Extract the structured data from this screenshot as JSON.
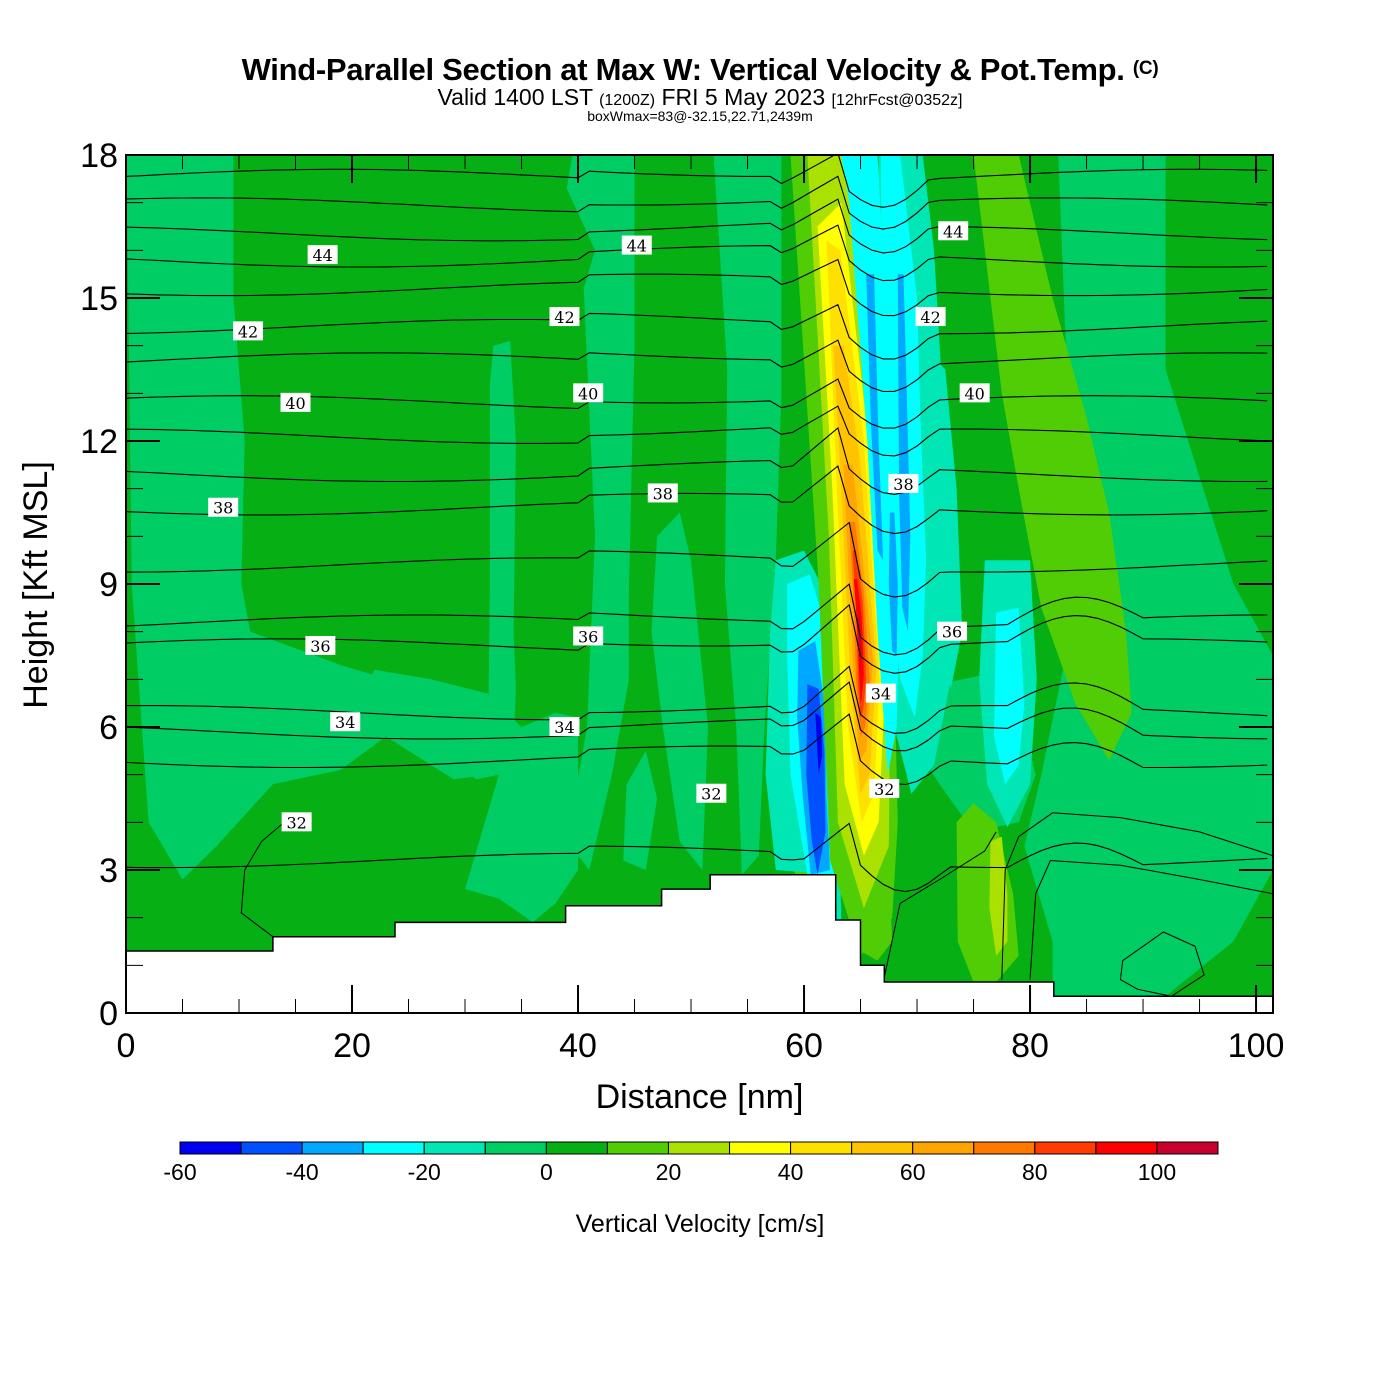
{
  "header": {
    "title": "Wind-Parallel Section at Max W: Vertical Velocity & Pot.Temp.",
    "copyright": "(C)",
    "valid_prefix": "Valid 1400 LST",
    "valid_utc": "(1200Z)",
    "valid_date": "FRI 5 May 2023",
    "forecast_info": "[12hrFcst@0352z]",
    "box_info": "boxWmax=83@-32.15,22.71,2439m"
  },
  "chart_data": {
    "type": "heatmap",
    "title": "Wind-Parallel Section at Max W: Vertical Velocity & Pot.Temp.",
    "xlabel": "Distance [nm]",
    "ylabel": "Height [Kft MSL]",
    "xlim": [
      0,
      101.5
    ],
    "ylim": [
      0,
      18
    ],
    "x_ticks": [
      0,
      20,
      40,
      60,
      80,
      100
    ],
    "y_ticks": [
      0,
      3,
      6,
      9,
      12,
      15,
      18
    ],
    "x_tick_labels": [
      "0",
      "20",
      "40",
      "60",
      "80",
      "100"
    ],
    "y_tick_labels": [
      "0",
      "3",
      "6",
      "9",
      "12",
      "15",
      "18"
    ],
    "colorbar": {
      "title": "Vertical Velocity [cm/s]",
      "levels": [
        -60,
        -50,
        -40,
        -30,
        -20,
        -10,
        0,
        10,
        20,
        30,
        40,
        50,
        60,
        70,
        80,
        90,
        100,
        110
      ],
      "tick_labels": [
        "-60",
        "-40",
        "-20",
        "0",
        "20",
        "40",
        "60",
        "80",
        "100"
      ],
      "colors": [
        "#0000f0",
        "#0050ff",
        "#00a8ff",
        "#00ffff",
        "#00e6b4",
        "#00cd64",
        "#05af14",
        "#50cd05",
        "#aae100",
        "#ffff00",
        "#ffe100",
        "#ffc300",
        "#ffa500",
        "#ff7800",
        "#ff3c00",
        "#ff0000",
        "#c8002d"
      ]
    },
    "terrain": {
      "description": "Terrain profile in kft MSL (step segments, x in nm)",
      "segments": [
        {
          "x0": 0,
          "x1": 13,
          "h": 1.3
        },
        {
          "x0": 13,
          "x1": 23.8,
          "h": 1.6
        },
        {
          "x0": 23.8,
          "x1": 38.9,
          "h": 1.9
        },
        {
          "x0": 38.9,
          "x1": 47.4,
          "h": 2.25
        },
        {
          "x0": 47.4,
          "x1": 51.7,
          "h": 2.6
        },
        {
          "x0": 51.7,
          "x1": 62.8,
          "h": 2.9
        },
        {
          "x0": 62.8,
          "x1": 65.0,
          "h": 1.95
        },
        {
          "x0": 65.0,
          "x1": 67.1,
          "h": 1.0
        },
        {
          "x0": 67.1,
          "x1": 82.1,
          "h": 0.65
        },
        {
          "x0": 82.1,
          "x1": 101.5,
          "h": 0.35
        }
      ]
    },
    "vertical_velocity_features": [
      {
        "name": "main updraft core",
        "x_range": [
          62,
          68
        ],
        "z_range": [
          3,
          18
        ],
        "max_cm_s": 100
      },
      {
        "name": "downdraft core",
        "x_range": [
          59,
          62
        ],
        "z_range": [
          2.5,
          8
        ],
        "min_cm_s": -50
      },
      {
        "name": "downdraft lee band",
        "x_range": [
          66,
          70
        ],
        "z_range": [
          7,
          17
        ],
        "min_cm_s": -30
      },
      {
        "name": "secondary downdraft",
        "x_range": [
          76,
          80
        ],
        "z_range": [
          4,
          9
        ],
        "min_cm_s": -20
      },
      {
        "name": "secondary updraft band",
        "x_range": [
          80,
          89
        ],
        "z_range": [
          6,
          18
        ],
        "max_cm_s": 20
      },
      {
        "name": "low-level updraft",
        "x_range": [
          76,
          79
        ],
        "z_range": [
          1,
          4
        ],
        "max_cm_s": 30
      }
    ],
    "isentropes": {
      "units": "deg C potential temperature",
      "interval": 1,
      "labeled_values": [
        32,
        34,
        36,
        38,
        40,
        42,
        44
      ],
      "labels": [
        {
          "value": "44",
          "x": 17.4,
          "z": 15.9
        },
        {
          "value": "44",
          "x": 45.2,
          "z": 16.1
        },
        {
          "value": "44",
          "x": 73.2,
          "z": 16.4
        },
        {
          "value": "42",
          "x": 10.8,
          "z": 14.3
        },
        {
          "value": "42",
          "x": 38.8,
          "z": 14.6
        },
        {
          "value": "42",
          "x": 71.2,
          "z": 14.6
        },
        {
          "value": "40",
          "x": 15.0,
          "z": 12.8
        },
        {
          "value": "40",
          "x": 40.9,
          "z": 13.0
        },
        {
          "value": "40",
          "x": 75.1,
          "z": 13.0
        },
        {
          "value": "38",
          "x": 8.6,
          "z": 10.6
        },
        {
          "value": "38",
          "x": 47.5,
          "z": 10.9
        },
        {
          "value": "38",
          "x": 68.8,
          "z": 11.1
        },
        {
          "value": "36",
          "x": 17.2,
          "z": 7.7
        },
        {
          "value": "36",
          "x": 40.9,
          "z": 7.9
        },
        {
          "value": "36",
          "x": 73.1,
          "z": 8.0
        },
        {
          "value": "34",
          "x": 19.4,
          "z": 6.1
        },
        {
          "value": "34",
          "x": 38.8,
          "z": 6.0
        },
        {
          "value": "34",
          "x": 66.8,
          "z": 6.7
        },
        {
          "value": "32",
          "x": 15.1,
          "z": 4.0
        },
        {
          "value": "32",
          "x": 51.8,
          "z": 4.6
        },
        {
          "value": "32",
          "x": 67.1,
          "z": 4.7
        }
      ],
      "line_levels_z_at_left": [
        17.55,
        16.95,
        16.35,
        15.8,
        15.2,
        14.4,
        13.7,
        12.8,
        12.1,
        11.3,
        10.6,
        9.4,
        8.2,
        7.7,
        6.3,
        5.9,
        5.3,
        3.2
      ]
    }
  }
}
